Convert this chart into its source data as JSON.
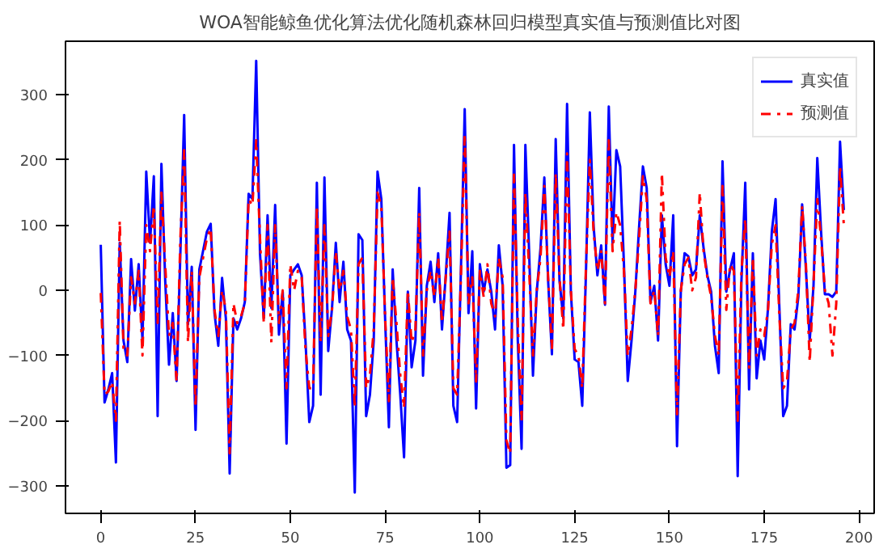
{
  "chart_data": {
    "type": "line",
    "title": "WOA智能鲸鱼优化算法优化随机森林回归模型真实值与预测值比对图",
    "x": [
      0,
      1,
      2,
      3,
      4,
      5,
      6,
      7,
      8,
      9,
      10,
      11,
      12,
      13,
      14,
      15,
      16,
      17,
      18,
      19,
      20,
      21,
      22,
      23,
      24,
      25,
      26,
      27,
      28,
      29,
      30,
      31,
      32,
      33,
      34,
      35,
      36,
      37,
      38,
      39,
      40,
      41,
      42,
      43,
      44,
      45,
      46,
      47,
      48,
      49,
      50,
      51,
      52,
      53,
      54,
      55,
      56,
      57,
      58,
      59,
      60,
      61,
      62,
      63,
      64,
      65,
      66,
      67,
      68,
      69,
      70,
      71,
      72,
      73,
      74,
      75,
      76,
      77,
      78,
      79,
      80,
      81,
      82,
      83,
      84,
      85,
      86,
      87,
      88,
      89,
      90,
      91,
      92,
      93,
      94,
      95,
      96,
      97,
      98,
      99,
      100,
      101,
      102,
      103,
      104,
      105,
      106,
      107,
      108,
      109,
      110,
      111,
      112,
      113,
      114,
      115,
      116,
      117,
      118,
      119,
      120,
      121,
      122,
      123,
      124,
      125,
      126,
      127,
      128,
      129,
      130,
      131,
      132,
      133,
      134,
      135,
      136,
      137,
      138,
      139,
      140,
      141,
      142,
      143,
      144,
      145,
      146,
      147,
      148,
      149,
      150,
      151,
      152,
      153,
      154,
      155,
      156,
      157,
      158,
      159,
      160,
      161,
      162,
      163,
      164,
      165,
      166,
      167,
      168,
      169,
      170,
      171,
      172,
      173,
      174,
      175,
      176,
      177,
      178,
      179,
      180,
      181,
      182,
      183,
      184,
      185,
      186,
      187,
      188,
      189,
      190,
      191,
      192,
      193,
      194,
      195,
      196
    ],
    "series": [
      {
        "name": "真实值",
        "color": "#0000ff",
        "line_style": "solid",
        "values": [
          70,
          -172,
          -152,
          -127,
          -264,
          73,
          -77,
          -110,
          48,
          -31,
          40,
          -77,
          182,
          73,
          175,
          -193,
          194,
          15,
          -114,
          -35,
          -139,
          57,
          269,
          -52,
          36,
          -214,
          32,
          61,
          90,
          102,
          -35,
          -85,
          19,
          -43,
          -281,
          -43,
          -60,
          -43,
          -18,
          148,
          140,
          352,
          57,
          -43,
          115,
          -27,
          131,
          -68,
          -2,
          -235,
          23,
          32,
          40,
          23,
          -77,
          -202,
          -177,
          165,
          -160,
          173,
          -93,
          -27,
          73,
          -18,
          44,
          -60,
          -77,
          -310,
          86,
          77,
          -193,
          -160,
          -77,
          182,
          140,
          -43,
          -210,
          32,
          -77,
          -160,
          -256,
          -2,
          -118,
          -77,
          157,
          -131,
          7,
          44,
          -18,
          57,
          -60,
          23,
          119,
          -177,
          -202,
          32,
          278,
          -35,
          60,
          -181,
          40,
          -2,
          32,
          -2,
          -60,
          69,
          7,
          -272,
          -268,
          223,
          -77,
          -243,
          223,
          57,
          -131,
          -2,
          65,
          173,
          15,
          -98,
          232,
          15,
          -43,
          286,
          -2,
          -106,
          -110,
          -177,
          32,
          273,
          98,
          23,
          69,
          -22,
          282,
          73,
          215,
          190,
          40,
          -139,
          -77,
          -2,
          98,
          190,
          157,
          -18,
          7,
          -77,
          115,
          40,
          7,
          115,
          -239,
          -2,
          57,
          52,
          23,
          32,
          115,
          65,
          23,
          -2,
          -85,
          -127,
          198,
          -2,
          32,
          57,
          -285,
          15,
          165,
          -152,
          57,
          -135,
          -77,
          -106,
          -27,
          90,
          140,
          -27,
          -193,
          -177,
          -52,
          -60,
          -10,
          132,
          32,
          -77,
          7,
          203,
          90,
          -6,
          -6,
          -10,
          -2,
          228,
          123
        ]
      },
      {
        "name": "预测值",
        "color": "#ff0000",
        "line_style": "dashdot",
        "values": [
          -4,
          -160,
          -155,
          -140,
          -200,
          107,
          -90,
          -100,
          20,
          -20,
          30,
          -100,
          100,
          60,
          130,
          -50,
          150,
          40,
          -70,
          -50,
          -140,
          80,
          215,
          -80,
          30,
          -180,
          20,
          50,
          80,
          95,
          -30,
          -70,
          0,
          -30,
          -250,
          -20,
          -50,
          -40,
          -20,
          140,
          130,
          230,
          80,
          -50,
          100,
          -80,
          100,
          -50,
          0,
          -150,
          40,
          0,
          30,
          20,
          -90,
          -150,
          -150,
          130,
          -80,
          100,
          -70,
          -30,
          60,
          0,
          30,
          -40,
          -60,
          -180,
          40,
          50,
          -150,
          -130,
          -60,
          150,
          130,
          -40,
          -170,
          20,
          -50,
          -130,
          -180,
          0,
          -80,
          -60,
          120,
          -100,
          0,
          30,
          -10,
          50,
          -50,
          20,
          90,
          -150,
          -160,
          20,
          240,
          -20,
          20,
          -140,
          30,
          -10,
          40,
          -20,
          -40,
          50,
          20,
          -230,
          -250,
          180,
          -50,
          -200,
          150,
          30,
          -100,
          0,
          50,
          160,
          20,
          -90,
          180,
          20,
          -60,
          210,
          0,
          -90,
          -100,
          -150,
          40,
          200,
          90,
          30,
          60,
          -20,
          230,
          60,
          120,
          100,
          30,
          -100,
          -60,
          0,
          80,
          175,
          140,
          -20,
          0,
          -70,
          180,
          50,
          20,
          60,
          -190,
          0,
          40,
          50,
          0,
          20,
          150,
          60,
          20,
          -10,
          -70,
          -100,
          160,
          -30,
          40,
          30,
          -200,
          30,
          110,
          -120,
          50,
          -100,
          -60,
          -70,
          -30,
          70,
          100,
          -40,
          -150,
          -140,
          -60,
          -50,
          0,
          130,
          40,
          -110,
          10,
          140,
          80,
          0,
          -20,
          -100,
          -20,
          190,
          100
        ]
      }
    ],
    "xlim": [
      -9.3,
      204
    ],
    "ylim": [
      -342,
      382
    ],
    "xticks": [
      0,
      25,
      50,
      75,
      100,
      125,
      150,
      175,
      200
    ],
    "yticks": [
      -300,
      -200,
      -100,
      0,
      100,
      200,
      300
    ],
    "grid": false,
    "legend": "top right"
  }
}
